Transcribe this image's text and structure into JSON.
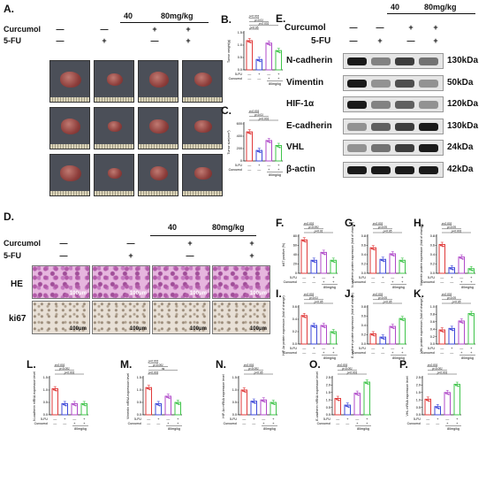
{
  "panel_labels": {
    "A": "A.",
    "B": "B.",
    "C": "C.",
    "D": "D.",
    "E": "E.",
    "F": "F.",
    "G": "G.",
    "H": "H.",
    "I": "I.",
    "J": "J.",
    "K": "K.",
    "L": "L.",
    "M": "M.",
    "N": "N.",
    "O": "O.",
    "P": "P."
  },
  "treatments": {
    "curcumol": "Curcumol",
    "fu": "5-FU",
    "dose_low": "40",
    "dose_high": "80mg/kg",
    "plus": "+",
    "minus": "—"
  },
  "blots": [
    {
      "name": "N-cadherin",
      "kda": "130kDa",
      "intensity": [
        1.0,
        0.4,
        0.8,
        0.5
      ]
    },
    {
      "name": "Vimentin",
      "kda": "50kDa",
      "intensity": [
        1.0,
        0.3,
        0.7,
        0.3
      ]
    },
    {
      "name": "HIF-1α",
      "kda": "120kDa",
      "intensity": [
        1.0,
        0.4,
        0.6,
        0.3
      ]
    },
    {
      "name": "E-cadherin",
      "kda": "130kDa",
      "intensity": [
        0.3,
        0.6,
        0.8,
        1.0
      ]
    },
    {
      "name": "VHL",
      "kda": "24kDa",
      "intensity": [
        0.3,
        0.5,
        0.8,
        1.0
      ]
    },
    {
      "name": "β-actin",
      "kda": "42kDa",
      "intensity": [
        1.0,
        1.0,
        1.0,
        1.0
      ]
    }
  ],
  "histology": {
    "row_labels": [
      "HE",
      "ki67"
    ],
    "scale": "100μm"
  },
  "x_axis": {
    "fu": "5-FU",
    "curcumol": "Curcumol",
    "dose": "80mg/kg"
  },
  "charts": [
    {
      "id": "B",
      "ylabel": "Tumor weight(g)",
      "yticks": [
        "0.0",
        "0.5",
        "1.0",
        "1.5"
      ],
      "ymax": 1.5,
      "values": [
        1.18,
        0.42,
        1.08,
        0.78
      ],
      "p": [
        "p<0.001",
        "p<0.01",
        "p<0.001",
        "p<0.05"
      ]
    },
    {
      "id": "C",
      "ylabel": "Tumor size(mm³)",
      "yticks": [
        "0",
        "200",
        "400",
        "600"
      ],
      "ymax": 600,
      "values": [
        470,
        170,
        330,
        250
      ],
      "p": [
        "p<0.001",
        "p<0.01",
        "p<0.001"
      ]
    },
    {
      "id": "F",
      "ylabel": "ki67 positive (%)",
      "yticks": [
        "0",
        "20",
        "40",
        "60",
        "80"
      ],
      "ymax": 80,
      "values": [
        72,
        28,
        45,
        28
      ],
      "p": [
        "p<0.001",
        "p<0.001",
        "p<0.01"
      ]
    },
    {
      "id": "G",
      "ylabel": "N-cadherin protein expression (fold of change)",
      "yticks": [
        "0.0",
        "0.2",
        "0.4",
        "0.6",
        "0.8"
      ],
      "ymax": 0.8,
      "values": [
        0.55,
        0.3,
        0.42,
        0.28
      ],
      "p": [
        "p<0.001",
        "p<0.05",
        "p<0.05"
      ]
    },
    {
      "id": "H",
      "ylabel": "Vimentin protein expression (fold of change)",
      "yticks": [
        "0.0",
        "0.2",
        "0.4",
        "0.6",
        "0.8"
      ],
      "ymax": 0.8,
      "values": [
        0.62,
        0.12,
        0.35,
        0.1
      ],
      "p": [
        "p<0.001",
        "p<0.05",
        "p<0.001"
      ]
    },
    {
      "id": "I",
      "ylabel": "HIF-1α protein expression (fold of change)",
      "yticks": [
        "0.0",
        "0.2",
        "0.4",
        "0.6"
      ],
      "ymax": 0.6,
      "values": [
        0.46,
        0.3,
        0.3,
        0.2
      ],
      "p": [
        "p<0.001",
        "p<0.01",
        "p<0.05"
      ]
    },
    {
      "id": "J",
      "ylabel": "E-cadherin protein expression (fold of change)",
      "yticks": [
        "0.0",
        "0.2",
        "0.4",
        "0.6",
        "0.8"
      ],
      "ymax": 0.8,
      "values": [
        0.22,
        0.15,
        0.38,
        0.55
      ],
      "p": [
        "p<0.001",
        "p<0.05",
        "p<0.05"
      ]
    },
    {
      "id": "K",
      "ylabel": "VHL protein expression (fold of change)",
      "yticks": [
        "0.0",
        "0.2",
        "0.4",
        "0.6",
        "0.8",
        "1.0"
      ],
      "ymax": 1.0,
      "values": [
        0.38,
        0.42,
        0.62,
        0.82
      ],
      "p": [
        "p<0.001",
        "p<0.05",
        "p<0.05"
      ]
    },
    {
      "id": "L",
      "ylabel": "N-cadherin mRNA expression level",
      "yticks": [
        "0.0",
        "0.5",
        "1.0",
        "1.5"
      ],
      "ymax": 1.5,
      "values": [
        1.05,
        0.45,
        0.45,
        0.45
      ],
      "p": [
        "p<0.001",
        "p<0.001",
        "p<0.001"
      ]
    },
    {
      "id": "M",
      "ylabel": "Vimentin mRNA expression level",
      "yticks": [
        "0.0",
        "0.5",
        "1.0",
        "1.5"
      ],
      "ymax": 1.5,
      "values": [
        1.1,
        0.45,
        0.75,
        0.5
      ],
      "p": [
        "p<0.001",
        "p<0.001",
        "ns",
        "p<0.001"
      ]
    },
    {
      "id": "N",
      "ylabel": "HIF-1α mRNA expression level",
      "yticks": [
        "0.0",
        "0.5",
        "1.0",
        "1.5"
      ],
      "ymax": 1.5,
      "values": [
        1.0,
        0.55,
        0.6,
        0.5
      ],
      "p": [
        "p<0.001",
        "p<0.001",
        "p<0.05"
      ]
    },
    {
      "id": "O",
      "ylabel": "E-cadherin mRNA expression level",
      "yticks": [
        "0.0",
        "0.5",
        "1.0",
        "1.5",
        "2.0",
        "2.5"
      ],
      "ymax": 2.5,
      "values": [
        1.1,
        0.65,
        1.45,
        2.2
      ],
      "p": [
        "p<0.001",
        "p<0.001",
        "p<0.001"
      ]
    },
    {
      "id": "P",
      "ylabel": "VHL mRNA expression level",
      "yticks": [
        "0.0",
        "0.5",
        "1.0",
        "1.5",
        "2.0",
        "2.5"
      ],
      "ymax": 2.5,
      "values": [
        1.05,
        0.55,
        1.5,
        2.05
      ],
      "p": [
        "p<0.001",
        "p<0.001",
        "p<0.001"
      ]
    }
  ],
  "colors": {
    "bars": [
      "#e03a3a",
      "#3f49d9",
      "#b04ac9",
      "#3fc44a"
    ]
  }
}
